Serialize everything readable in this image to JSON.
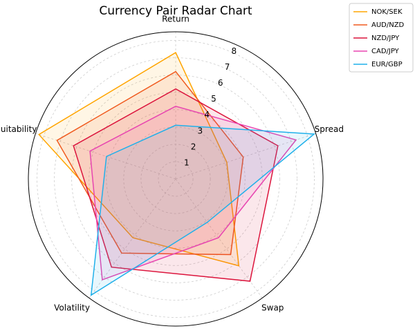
{
  "chart_data": {
    "type": "radar",
    "title": "Currency Pair Radar Chart",
    "categories": [
      "Return",
      "Spread",
      "Swap",
      "Volatility",
      "Suitability"
    ],
    "series": [
      {
        "name": "NOK/SEK",
        "color": "#ffa500",
        "values": [
          7.3,
          3.1,
          6.2,
          4.2,
          8.3
        ]
      },
      {
        "name": "AUD/NZD",
        "color": "#f05a1e",
        "values": [
          6.2,
          4.1,
          5.4,
          5.3,
          7.2
        ]
      },
      {
        "name": "NZD/JPY",
        "color": "#dc143c",
        "values": [
          5.2,
          6.2,
          7.3,
          6.3,
          6.2
        ]
      },
      {
        "name": "CAD/JPY",
        "color": "#e845b0",
        "values": [
          4.2,
          7.3,
          4.2,
          7.2,
          5.2
        ]
      },
      {
        "name": "EUR/GBP",
        "color": "#1fb0ea",
        "values": [
          3.1,
          8.4,
          3.1,
          8.3,
          4.2
        ]
      }
    ],
    "ylim": [
      0,
      8.5
    ],
    "yticks": [
      1,
      2,
      3,
      4,
      5,
      6,
      7,
      8
    ],
    "grid": true,
    "legend": "upper right"
  }
}
